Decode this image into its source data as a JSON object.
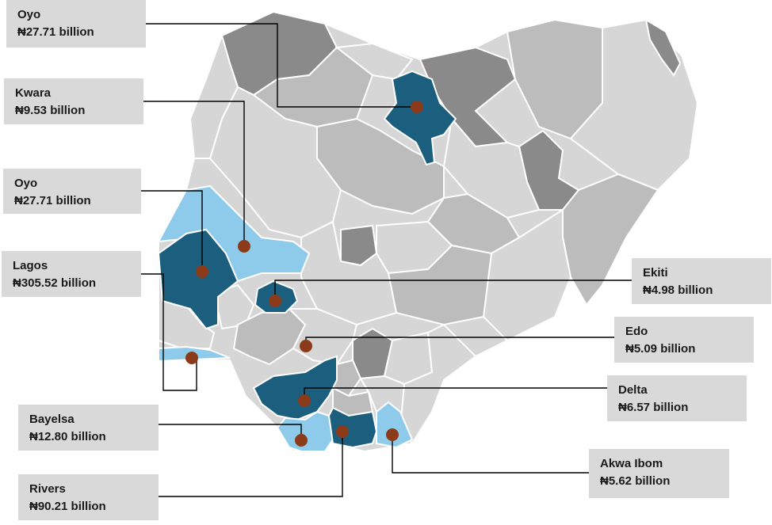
{
  "colors": {
    "highlight_dark": "#1b5e7e",
    "highlight_light": "#8ecbea",
    "grey_dark": "#8a8a8a",
    "grey_mid": "#bcbcbc",
    "grey_light": "#d6d6d6",
    "marker": "#8b3a1a",
    "label_bg": "#d9d9d9"
  },
  "labels": [
    {
      "name": "Oyo",
      "amount": "₦27.71 billion"
    },
    {
      "name": "Kwara",
      "amount": "₦9.53 billion"
    },
    {
      "name": "Oyo",
      "amount": "₦27.71 billion"
    },
    {
      "name": "Lagos",
      "amount": "₦305.52 billion"
    },
    {
      "name": "Ekiti",
      "amount": "₦4.98 billion"
    },
    {
      "name": "Edo",
      "amount": "₦5.09 billion"
    },
    {
      "name": "Delta",
      "amount": "₦6.57 billion"
    },
    {
      "name": "Bayelsa",
      "amount": "₦12.80 billion"
    },
    {
      "name": "Rivers",
      "amount": "₦90.21 billion"
    },
    {
      "name": "Akwa Ibom",
      "amount": "₦5.62 billion"
    }
  ]
}
